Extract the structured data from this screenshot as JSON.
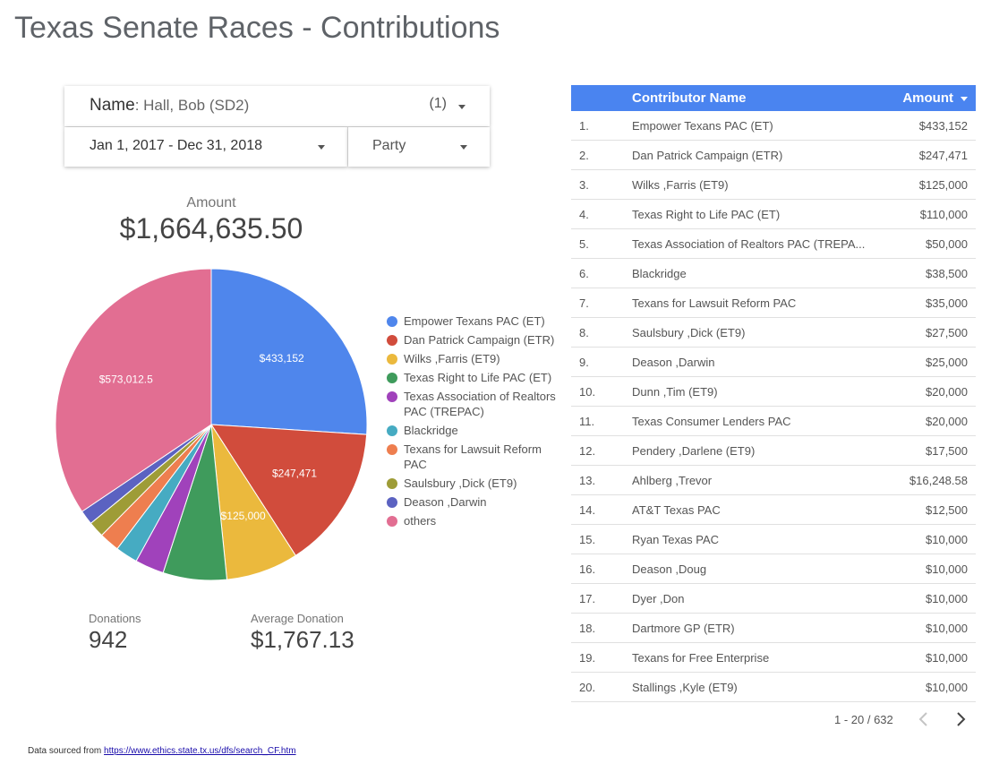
{
  "header": {
    "title": "Texas Senate Races - Contributions"
  },
  "filters": {
    "name_label": "Name",
    "name_value": ": Hall, Bob (SD2)",
    "name_count": "(1)",
    "date_range": "Jan 1, 2017 - Dec 31, 2018",
    "party_label": "Party"
  },
  "summary": {
    "amount_label": "Amount",
    "amount_value": "$1,664,635.50",
    "donations_label": "Donations",
    "donations_value": "942",
    "avg_label": "Average Donation",
    "avg_value": "$1,767.13"
  },
  "chart_data": {
    "type": "pie",
    "title": "",
    "slices": [
      {
        "name": "Empower Texans PAC (ET)",
        "value": 433152,
        "label": "$433,152",
        "color": "#4f86ec"
      },
      {
        "name": "Dan Patrick Campaign (ETR)",
        "value": 247471,
        "label": "$247,471",
        "color": "#d14c3c"
      },
      {
        "name": "Wilks ,Farris (ET9)",
        "value": 125000,
        "label": "$125,000",
        "color": "#ebb93d"
      },
      {
        "name": "Texas Right to Life PAC (ET)",
        "value": 110000,
        "label": "",
        "color": "#3f9b5c"
      },
      {
        "name": "Texas Association of Realtors PAC (TREPAC)",
        "value": 50000,
        "label": "",
        "color": "#a042bb"
      },
      {
        "name": "Blackridge",
        "value": 38500,
        "label": "",
        "color": "#46abc2"
      },
      {
        "name": "Texans for Lawsuit Reform PAC",
        "value": 35000,
        "label": "",
        "color": "#ee7e4f"
      },
      {
        "name": "Saulsbury ,Dick (ET9)",
        "value": 27500,
        "label": "",
        "color": "#9e9c37"
      },
      {
        "name": "Deason ,Darwin",
        "value": 25000,
        "label": "",
        "color": "#5b62c1"
      },
      {
        "name": "others",
        "value": 573012.5,
        "label": "$573,012.5",
        "color": "#e26e92"
      }
    ]
  },
  "table": {
    "headers": {
      "name": "Contributor Name",
      "amount": "Amount"
    },
    "rows": [
      {
        "idx": "1.",
        "name": "Empower Texans PAC (ET)",
        "amount": "$433,152"
      },
      {
        "idx": "2.",
        "name": "Dan Patrick Campaign (ETR)",
        "amount": "$247,471"
      },
      {
        "idx": "3.",
        "name": "Wilks ,Farris (ET9)",
        "amount": "$125,000"
      },
      {
        "idx": "4.",
        "name": "Texas Right to Life PAC (ET)",
        "amount": "$110,000"
      },
      {
        "idx": "5.",
        "name": "Texas Association of Realtors PAC (TREPA...",
        "amount": "$50,000"
      },
      {
        "idx": "6.",
        "name": "Blackridge",
        "amount": "$38,500"
      },
      {
        "idx": "7.",
        "name": "Texans for Lawsuit Reform PAC",
        "amount": "$35,000"
      },
      {
        "idx": "8.",
        "name": "Saulsbury ,Dick (ET9)",
        "amount": "$27,500"
      },
      {
        "idx": "9.",
        "name": "Deason ,Darwin",
        "amount": "$25,000"
      },
      {
        "idx": "10.",
        "name": "Dunn ,Tim (ET9)",
        "amount": "$20,000"
      },
      {
        "idx": "11.",
        "name": "Texas Consumer Lenders PAC",
        "amount": "$20,000"
      },
      {
        "idx": "12.",
        "name": "Pendery ,Darlene (ET9)",
        "amount": "$17,500"
      },
      {
        "idx": "13.",
        "name": "Ahlberg ,Trevor",
        "amount": "$16,248.58"
      },
      {
        "idx": "14.",
        "name": "AT&T Texas PAC",
        "amount": "$12,500"
      },
      {
        "idx": "15.",
        "name": "Ryan Texas PAC",
        "amount": "$10,000"
      },
      {
        "idx": "16.",
        "name": "Deason ,Doug",
        "amount": "$10,000"
      },
      {
        "idx": "17.",
        "name": "Dyer ,Don",
        "amount": "$10,000"
      },
      {
        "idx": "18.",
        "name": "Dartmore GP (ETR)",
        "amount": "$10,000"
      },
      {
        "idx": "19.",
        "name": "Texans for Free Enterprise",
        "amount": "$10,000"
      },
      {
        "idx": "20.",
        "name": "Stallings ,Kyle (ET9)",
        "amount": "$10,000"
      }
    ]
  },
  "pagination": {
    "text": "1 - 20 / 632"
  },
  "footer": {
    "source_prefix": "Data sourced from ",
    "source_link": "https://www.ethics.state.tx.us/dfs/search_CF.htm"
  }
}
